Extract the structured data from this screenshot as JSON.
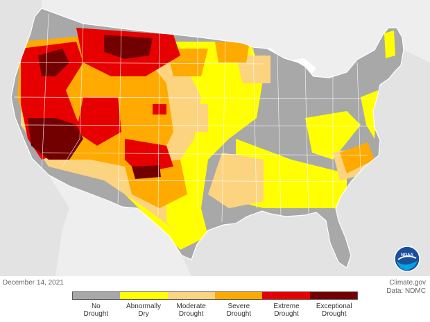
{
  "map": {
    "date": "December 14, 2021",
    "credit_line1": "Climate.gov",
    "credit_line2": "Data: NDMC",
    "logo_text": "NOAA"
  },
  "legend": {
    "categories": [
      {
        "line1": "No",
        "line2": "Drought",
        "color": "#a8a8a8"
      },
      {
        "line1": "Abnormally",
        "line2": "Dry",
        "color": "#ffff00"
      },
      {
        "line1": "Moderate",
        "line2": "Drought",
        "color": "#fcd37f"
      },
      {
        "line1": "Severe",
        "line2": "Drought",
        "color": "#ffaa00"
      },
      {
        "line1": "Extreme",
        "line2": "Drought",
        "color": "#e60000"
      },
      {
        "line1": "Exceptional",
        "line2": "Drought",
        "color": "#730000"
      }
    ]
  },
  "colors": {
    "background": "#e3e3e3",
    "water": "#ffffff"
  }
}
